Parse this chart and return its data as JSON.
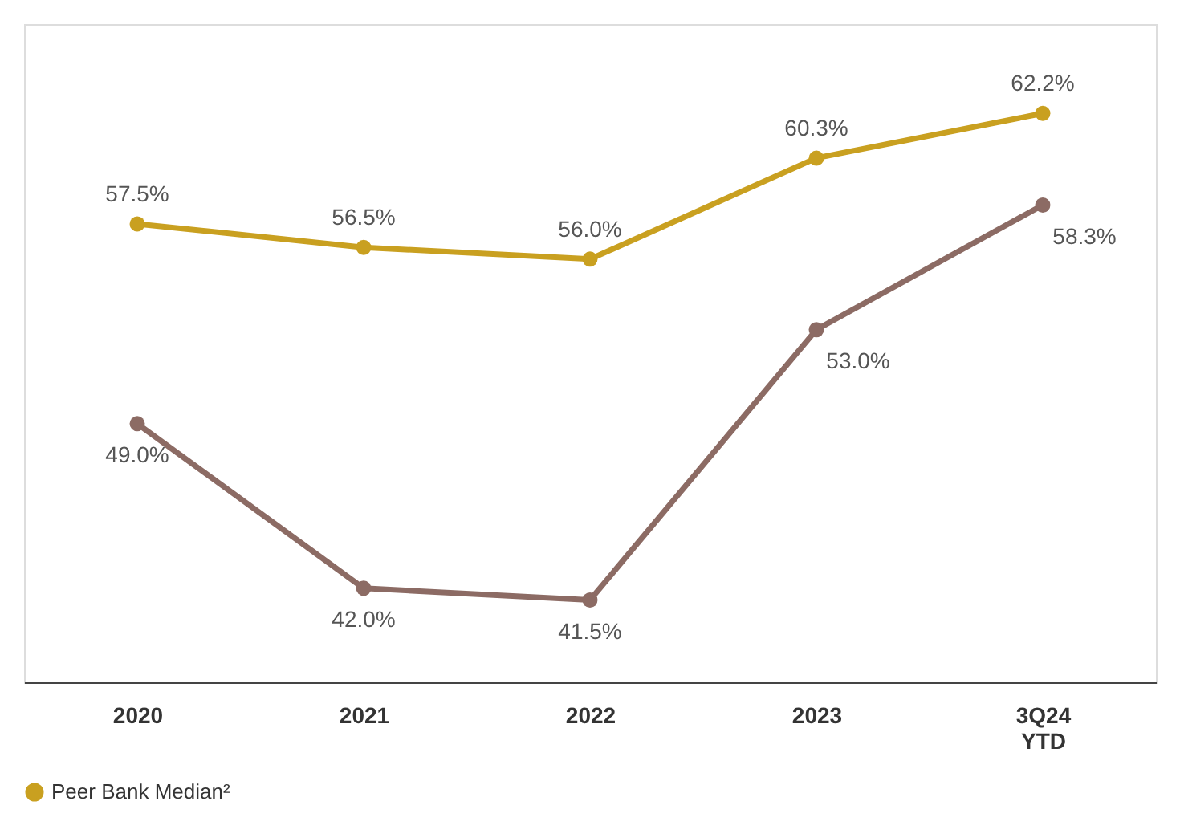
{
  "chart_data": {
    "type": "line",
    "categories": [
      "2020",
      "2021",
      "2022",
      "2023",
      "3Q24 YTD"
    ],
    "series": [
      {
        "color": "#8c6b64",
        "values": [
          49.0,
          42.0,
          41.5,
          53.0,
          58.3
        ],
        "value_labels": [
          "49.0%",
          "42.0%",
          "41.5%",
          "53.0%",
          "58.3%"
        ]
      },
      {
        "name": "Peer Bank Median²",
        "color": "#c9a020",
        "values": [
          57.5,
          56.5,
          56.0,
          60.3,
          62.2
        ],
        "value_labels": [
          "57.5%",
          "56.5%",
          "56.0%",
          "60.3%",
          "62.2%"
        ]
      }
    ],
    "tick_labels": "x",
    "marker": "circle",
    "line_style": "solid",
    "grid": false,
    "legend": "bottom"
  }
}
